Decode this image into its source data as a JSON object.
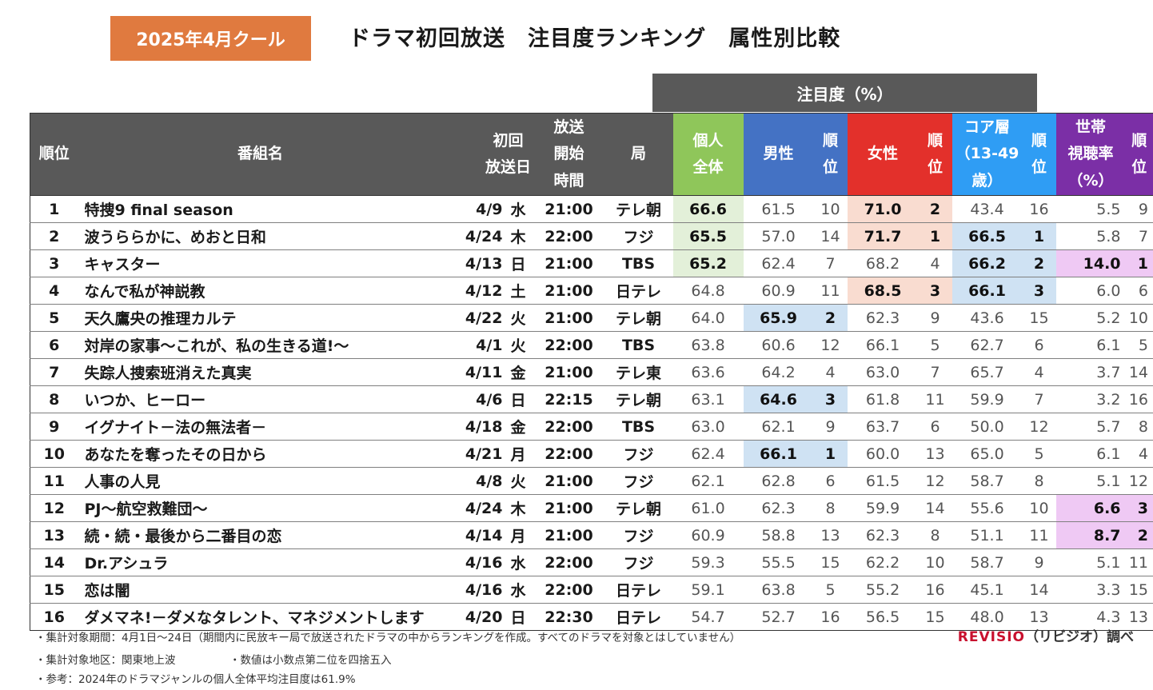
{
  "badge": "2025年4月クール",
  "title": "ドラマ初回放送　注目度ランキング　属性別比較",
  "attention_header": "注目度（%）",
  "columns": {
    "rank": "順位",
    "name": "番組名",
    "first": "初回\n放送日",
    "start": "放送\n開始\n時間",
    "station": "局",
    "personal": "個人\n全体",
    "male": "男性",
    "male_rank": "順\n位",
    "female": "女性",
    "female_rank": "順\n位",
    "core": "コア層\n（13-49\n歳）",
    "core_rank": "順\n位",
    "household": "世帯\n視聴率\n（%）",
    "household_rank": "順\n位"
  },
  "colors": {
    "badge": "#e07a3f",
    "personal": "#8fc65a",
    "male": "#4472c4",
    "female": "#e3302b",
    "core": "#2f9df4",
    "household": "#7b2fa6",
    "highlight_green": "#e3f0d9",
    "highlight_blue": "#cfe2f3",
    "highlight_red": "#f9dcd0",
    "highlight_purple": "#efc9f4"
  },
  "rows": [
    {
      "rank": "1",
      "name": "特捜9 final season",
      "date": "4/9",
      "dow": "水",
      "time": "21:00",
      "station": "テレ朝",
      "personal": "66.6",
      "male": "61.5",
      "male_rank": "10",
      "female": "71.0",
      "female_rank": "2",
      "core": "43.4",
      "core_rank": "16",
      "hh": "5.5",
      "hh_rank": "9",
      "hl": [
        "personal",
        "female"
      ]
    },
    {
      "rank": "2",
      "name": "波うららかに、めおと日和",
      "date": "4/24",
      "dow": "木",
      "time": "22:00",
      "station": "フジ",
      "personal": "65.5",
      "male": "57.0",
      "male_rank": "14",
      "female": "71.7",
      "female_rank": "1",
      "core": "66.5",
      "core_rank": "1",
      "hh": "5.8",
      "hh_rank": "7",
      "hl": [
        "personal",
        "female",
        "core"
      ]
    },
    {
      "rank": "3",
      "name": "キャスター",
      "date": "4/13",
      "dow": "日",
      "time": "21:00",
      "station": "TBS",
      "personal": "65.2",
      "male": "62.4",
      "male_rank": "7",
      "female": "68.2",
      "female_rank": "4",
      "core": "66.2",
      "core_rank": "2",
      "hh": "14.0",
      "hh_rank": "1",
      "hl": [
        "personal",
        "core",
        "hh"
      ]
    },
    {
      "rank": "4",
      "name": "なんで私が神説教",
      "date": "4/12",
      "dow": "土",
      "time": "21:00",
      "station": "日テレ",
      "personal": "64.8",
      "male": "60.9",
      "male_rank": "11",
      "female": "68.5",
      "female_rank": "3",
      "core": "66.1",
      "core_rank": "3",
      "hh": "6.0",
      "hh_rank": "6",
      "hl": [
        "female",
        "core"
      ]
    },
    {
      "rank": "5",
      "name": "天久鷹央の推理カルテ",
      "date": "4/22",
      "dow": "火",
      "time": "21:00",
      "station": "テレ朝",
      "personal": "64.0",
      "male": "65.9",
      "male_rank": "2",
      "female": "62.3",
      "female_rank": "9",
      "core": "43.6",
      "core_rank": "15",
      "hh": "5.2",
      "hh_rank": "10",
      "hl": [
        "male"
      ]
    },
    {
      "rank": "6",
      "name": "対岸の家事～これが、私の生きる道!～",
      "date": "4/1",
      "dow": "火",
      "time": "22:00",
      "station": "TBS",
      "personal": "63.8",
      "male": "60.6",
      "male_rank": "12",
      "female": "66.1",
      "female_rank": "5",
      "core": "62.7",
      "core_rank": "6",
      "hh": "6.1",
      "hh_rank": "5",
      "hl": []
    },
    {
      "rank": "7",
      "name": "失踪人捜索班消えた真実",
      "date": "4/11",
      "dow": "金",
      "time": "21:00",
      "station": "テレ東",
      "personal": "63.6",
      "male": "64.2",
      "male_rank": "4",
      "female": "63.0",
      "female_rank": "7",
      "core": "65.7",
      "core_rank": "4",
      "hh": "3.7",
      "hh_rank": "14",
      "hl": []
    },
    {
      "rank": "8",
      "name": "いつか、ヒーロー",
      "date": "4/6",
      "dow": "日",
      "time": "22:15",
      "station": "テレ朝",
      "personal": "63.1",
      "male": "64.6",
      "male_rank": "3",
      "female": "61.8",
      "female_rank": "11",
      "core": "59.9",
      "core_rank": "7",
      "hh": "3.2",
      "hh_rank": "16",
      "hl": [
        "male"
      ]
    },
    {
      "rank": "9",
      "name": "イグナイト－法の無法者－",
      "date": "4/18",
      "dow": "金",
      "time": "22:00",
      "station": "TBS",
      "personal": "63.0",
      "male": "62.1",
      "male_rank": "9",
      "female": "63.7",
      "female_rank": "6",
      "core": "50.0",
      "core_rank": "12",
      "hh": "5.7",
      "hh_rank": "8",
      "hl": []
    },
    {
      "rank": "10",
      "name": "あなたを奪ったその日から",
      "date": "4/21",
      "dow": "月",
      "time": "22:00",
      "station": "フジ",
      "personal": "62.4",
      "male": "66.1",
      "male_rank": "1",
      "female": "60.0",
      "female_rank": "13",
      "core": "65.0",
      "core_rank": "5",
      "hh": "6.1",
      "hh_rank": "4",
      "hl": [
        "male"
      ]
    },
    {
      "rank": "11",
      "name": "人事の人見",
      "date": "4/8",
      "dow": "火",
      "time": "21:00",
      "station": "フジ",
      "personal": "62.1",
      "male": "62.8",
      "male_rank": "6",
      "female": "61.5",
      "female_rank": "12",
      "core": "58.7",
      "core_rank": "8",
      "hh": "5.1",
      "hh_rank": "12",
      "hl": []
    },
    {
      "rank": "12",
      "name": "PJ～航空救難団～",
      "date": "4/24",
      "dow": "木",
      "time": "21:00",
      "station": "テレ朝",
      "personal": "61.0",
      "male": "62.3",
      "male_rank": "8",
      "female": "59.9",
      "female_rank": "14",
      "core": "55.6",
      "core_rank": "10",
      "hh": "6.6",
      "hh_rank": "3",
      "hl": [
        "hh"
      ]
    },
    {
      "rank": "13",
      "name": "続・続・最後から二番目の恋",
      "date": "4/14",
      "dow": "月",
      "time": "21:00",
      "station": "フジ",
      "personal": "60.9",
      "male": "58.8",
      "male_rank": "13",
      "female": "62.3",
      "female_rank": "8",
      "core": "51.1",
      "core_rank": "11",
      "hh": "8.7",
      "hh_rank": "2",
      "hl": [
        "hh"
      ]
    },
    {
      "rank": "14",
      "name": "Dr.アシュラ",
      "date": "4/16",
      "dow": "水",
      "time": "22:00",
      "station": "フジ",
      "personal": "59.3",
      "male": "55.5",
      "male_rank": "15",
      "female": "62.2",
      "female_rank": "10",
      "core": "58.7",
      "core_rank": "9",
      "hh": "5.1",
      "hh_rank": "11",
      "hl": []
    },
    {
      "rank": "15",
      "name": "恋は闇",
      "date": "4/16",
      "dow": "水",
      "time": "22:00",
      "station": "日テレ",
      "personal": "59.1",
      "male": "63.8",
      "male_rank": "5",
      "female": "55.2",
      "female_rank": "16",
      "core": "45.1",
      "core_rank": "14",
      "hh": "3.3",
      "hh_rank": "15",
      "hl": []
    },
    {
      "rank": "16",
      "name": "ダメマネ!－ダメなタレント、マネジメントします",
      "date": "4/20",
      "dow": "日",
      "time": "22:30",
      "station": "日テレ",
      "personal": "54.7",
      "male": "52.7",
      "male_rank": "16",
      "female": "56.5",
      "female_rank": "15",
      "core": "48.0",
      "core_rank": "13",
      "hh": "4.3",
      "hh_rank": "13",
      "hl": []
    }
  ],
  "notes": [
    "・集計対象期間：4月1日～24日（期間内に民放キー局で放送されたドラマの中からランキングを作成。すべてのドラマを対象とはしていません）",
    "・集計対象地区：関東地上波　　　　　・数値は小数点第二位を四捨五入",
    "・参考：2024年のドラマジャンルの個人全体平均注目度は61.9%"
  ],
  "credit": {
    "brand": "REVISIO",
    "rest": "（リビジオ）調べ"
  }
}
